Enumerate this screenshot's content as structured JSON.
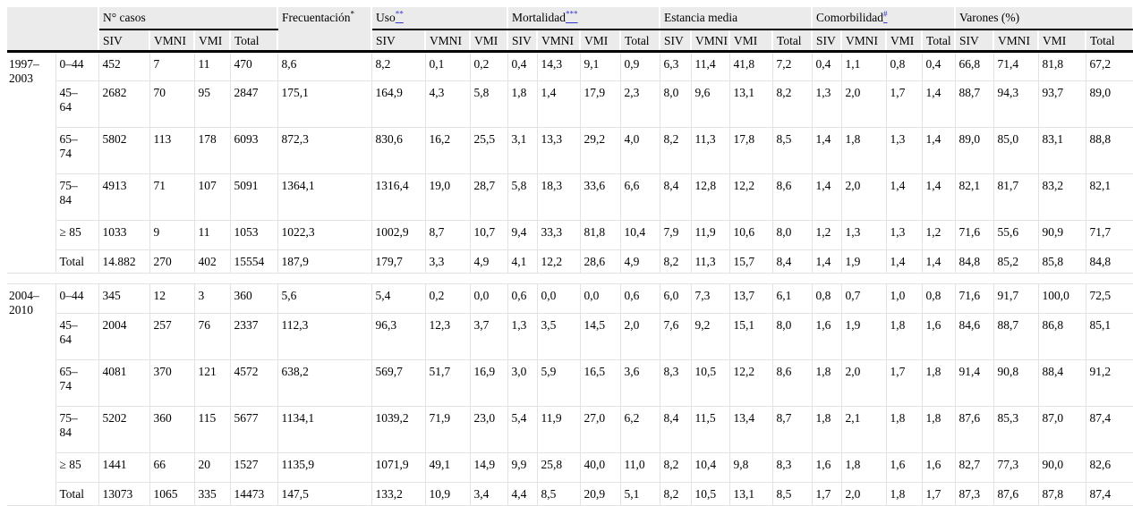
{
  "meta": {
    "colors": {
      "footnote_link": "#3333cc",
      "header_bg": "#ebebeb",
      "grid_line": "#e3e3e3"
    }
  },
  "table": {
    "corner_label": "",
    "subcol_names": [
      "SIV",
      "VMNI",
      "VMI",
      "Total"
    ],
    "col_header_groups": [
      {
        "label": "N° casos",
        "sup": "",
        "sup_is_link": false,
        "subcols": [
          "SIV",
          "VMNI",
          "VMI",
          "Total"
        ]
      },
      {
        "label": "Frecuentación",
        "sup": "*",
        "sup_is_link": false,
        "subcols": []
      },
      {
        "label": "Uso",
        "sup": "**",
        "sup_is_link": true,
        "subcols": [
          "SIV",
          "VMNI",
          "VMI"
        ]
      },
      {
        "label": "Mortalidad",
        "sup": "***",
        "sup_is_link": true,
        "subcols": [
          "SIV",
          "VMNI",
          "VMI",
          "Total"
        ]
      },
      {
        "label": "Estancia media",
        "sup": "",
        "sup_is_link": false,
        "subcols": [
          "SIV",
          "VMNI",
          "VMI",
          "Total"
        ]
      },
      {
        "label": "Comorbilidad",
        "sup": "#",
        "sup_is_link": true,
        "subcols": [
          "SIV",
          "VMNI",
          "VMI",
          "Total"
        ]
      },
      {
        "label": "Varones (%)",
        "sup": "",
        "sup_is_link": false,
        "subcols": [
          "SIV",
          "VMNI",
          "VMI",
          "Total"
        ]
      }
    ],
    "value_columns_order": [
      "N° casos SIV",
      "N° casos VMNI",
      "N° casos VMI",
      "N° casos Total",
      "Frecuentación",
      "Uso SIV",
      "Uso VMNI",
      "Uso VMI",
      "Mortalidad SIV",
      "Mortalidad VMNI",
      "Mortalidad VMI",
      "Mortalidad Total",
      "Estancia media SIV",
      "Estancia media VMNI",
      "Estancia media VMI",
      "Estancia media Total",
      "Comorbilidad SIV",
      "Comorbilidad VMNI",
      "Comorbilidad VMI",
      "Comorbilidad Total",
      "Varones SIV",
      "Varones VMNI",
      "Varones VMI",
      "Varones Total"
    ],
    "periods": [
      {
        "label": "1997–2003",
        "rows": [
          {
            "age": "0–44",
            "values": [
              "452",
              "7",
              "11",
              "470",
              "8,6",
              "8,2",
              "0,1",
              "0,2",
              "0,4",
              "14,3",
              "9,1",
              "0,9",
              "6,3",
              "11,4",
              "41,8",
              "7,2",
              "0,4",
              "1,1",
              "0,8",
              "0,4",
              "66,8",
              "71,4",
              "81,8",
              "67,2"
            ]
          },
          {
            "age": "45–64",
            "values": [
              "2682",
              "70",
              "95",
              "2847",
              "175,1",
              "164,9",
              "4,3",
              "5,8",
              "1,8",
              "1,4",
              "17,9",
              "2,3",
              "8,0",
              "9,6",
              "13,1",
              "8,2",
              "1,3",
              "2,0",
              "1,7",
              "1,4",
              "88,7",
              "94,3",
              "93,7",
              "89,0"
            ]
          },
          {
            "age": "65–74",
            "values": [
              "5802",
              "113",
              "178",
              "6093",
              "872,3",
              "830,6",
              "16,2",
              "25,5",
              "3,1",
              "13,3",
              "29,2",
              "4,0",
              "8,2",
              "11,3",
              "17,8",
              "8,5",
              "1,4",
              "1,8",
              "1,3",
              "1,4",
              "89,0",
              "85,0",
              "83,1",
              "88,8"
            ]
          },
          {
            "age": "75–84",
            "values": [
              "4913",
              "71",
              "107",
              "5091",
              "1364,1",
              "1316,4",
              "19,0",
              "28,7",
              "5,8",
              "18,3",
              "33,6",
              "6,6",
              "8,4",
              "12,8",
              "12,2",
              "8,6",
              "1,4",
              "2,0",
              "1,4",
              "1,4",
              "82,1",
              "81,7",
              "83,2",
              "82,1"
            ]
          },
          {
            "age": "≥ 85",
            "values": [
              "1033",
              "9",
              "11",
              "1053",
              "1022,3",
              "1002,9",
              "8,7",
              "10,7",
              "9,4",
              "33,3",
              "81,8",
              "10,4",
              "7,9",
              "11,9",
              "10,6",
              "8,0",
              "1,2",
              "1,3",
              "1,3",
              "1,2",
              "71,6",
              "55,6",
              "90,9",
              "71,7"
            ]
          },
          {
            "age": "Total",
            "values": [
              "14.882",
              "270",
              "402",
              "15554",
              "187,9",
              "179,7",
              "3,3",
              "4,9",
              "4,1",
              "12,2",
              "28,6",
              "4,9",
              "8,2",
              "11,3",
              "15,7",
              "8,4",
              "1,4",
              "1,9",
              "1,4",
              "1,4",
              "84,8",
              "85,2",
              "85,8",
              "84,8"
            ]
          }
        ]
      },
      {
        "label": "2004–2010",
        "rows": [
          {
            "age": "0–44",
            "values": [
              "345",
              "12",
              "3",
              "360",
              "5,6",
              "5,4",
              "0,2",
              "0,0",
              "0,6",
              "0,0",
              "0,0",
              "0,6",
              "6,0",
              "7,3",
              "13,7",
              "6,1",
              "0,8",
              "0,7",
              "1,0",
              "0,8",
              "71,6",
              "91,7",
              "100,0",
              "72,5"
            ]
          },
          {
            "age": "45–64",
            "values": [
              "2004",
              "257",
              "76",
              "2337",
              "112,3",
              "96,3",
              "12,3",
              "3,7",
              "1,3",
              "3,5",
              "14,5",
              "2,0",
              "7,6",
              "9,2",
              "15,1",
              "8,0",
              "1,6",
              "1,9",
              "1,8",
              "1,6",
              "84,6",
              "88,7",
              "86,8",
              "85,1"
            ]
          },
          {
            "age": "65–74",
            "values": [
              "4081",
              "370",
              "121",
              "4572",
              "638,2",
              "569,7",
              "51,7",
              "16,9",
              "3,0",
              "5,9",
              "16,5",
              "3,6",
              "8,3",
              "10,5",
              "12,2",
              "8,6",
              "1,8",
              "2,0",
              "1,7",
              "1,8",
              "91,4",
              "90,8",
              "88,4",
              "91,2"
            ]
          },
          {
            "age": "75–84",
            "values": [
              "5202",
              "360",
              "115",
              "5677",
              "1134,1",
              "1039,2",
              "71,9",
              "23,0",
              "5,4",
              "11,9",
              "27,0",
              "6,2",
              "8,4",
              "11,5",
              "13,4",
              "8,7",
              "1,8",
              "2,1",
              "1,8",
              "1,8",
              "87,6",
              "85,3",
              "87,0",
              "87,4"
            ]
          },
          {
            "age": "≥ 85",
            "values": [
              "1441",
              "66",
              "20",
              "1527",
              "1135,9",
              "1071,9",
              "49,1",
              "14,9",
              "9,9",
              "25,8",
              "40,0",
              "11,0",
              "8,2",
              "10,4",
              "9,8",
              "8,3",
              "1,6",
              "1,8",
              "1,6",
              "1,6",
              "82,7",
              "77,3",
              "90,0",
              "82,6"
            ]
          },
          {
            "age": "Total",
            "values": [
              "13073",
              "1065",
              "335",
              "14473",
              "147,5",
              "133,2",
              "10,9",
              "3,4",
              "4,4",
              "8,5",
              "20,9",
              "5,1",
              "8,2",
              "10,5",
              "13,1",
              "8,5",
              "1,7",
              "2,0",
              "1,8",
              "1,7",
              "87,3",
              "87,6",
              "87,8",
              "87,4"
            ]
          }
        ]
      }
    ]
  }
}
